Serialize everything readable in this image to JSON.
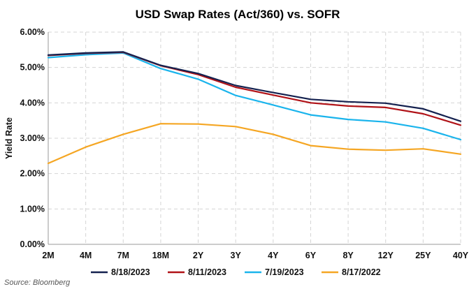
{
  "chart_data": {
    "type": "line",
    "title": "USD Swap Rates (Act/360) vs. SOFR",
    "ylabel": "Yield Rate",
    "xlabel": "",
    "categories": [
      "2M",
      "4M",
      "7M",
      "18M",
      "2Y",
      "3Y",
      "4Y",
      "6Y",
      "8Y",
      "12Y",
      "25Y",
      "40Y"
    ],
    "ylim": [
      0,
      6
    ],
    "yticks": [
      0,
      1,
      2,
      3,
      4,
      5,
      6
    ],
    "ytick_labels": [
      "0.00%",
      "1.00%",
      "2.00%",
      "3.00%",
      "4.00%",
      "5.00%",
      "6.00%"
    ],
    "grid": "dashed",
    "legend_position": "bottom",
    "series": [
      {
        "name": "8/18/2023",
        "color": "#14214f",
        "values": [
          5.35,
          5.41,
          5.44,
          5.06,
          4.83,
          4.49,
          4.29,
          4.1,
          4.03,
          3.99,
          3.83,
          3.48
        ]
      },
      {
        "name": "8/11/2023",
        "color": "#b01217",
        "values": [
          5.34,
          5.4,
          5.43,
          5.05,
          4.8,
          4.44,
          4.22,
          4.0,
          3.91,
          3.87,
          3.69,
          3.37
        ]
      },
      {
        "name": "7/19/2023",
        "color": "#1ab4ec",
        "values": [
          5.28,
          5.36,
          5.41,
          4.97,
          4.67,
          4.21,
          3.94,
          3.66,
          3.53,
          3.46,
          3.28,
          2.96
        ]
      },
      {
        "name": "8/17/2022",
        "color": "#f5a623",
        "values": [
          2.29,
          2.75,
          3.11,
          3.41,
          3.4,
          3.33,
          3.11,
          2.79,
          2.69,
          2.66,
          2.7,
          2.55
        ]
      }
    ]
  },
  "source": "Source: Bloomberg"
}
